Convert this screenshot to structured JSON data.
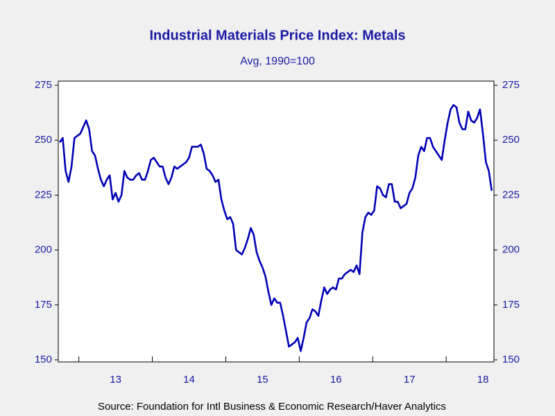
{
  "chart_data": {
    "type": "line",
    "title": "Industrial Materials Price Index: Metals",
    "subtitle": "Avg, 1990=100",
    "source": "Source:  Foundation for Intl Business & Economic Research/Haver Analytics",
    "xlim": [
      2012.72,
      2018.65
    ],
    "xticks": [
      {
        "value": 2013,
        "label": "13"
      },
      {
        "value": 2014,
        "label": "14"
      },
      {
        "value": 2015,
        "label": "15"
      },
      {
        "value": 2016,
        "label": "16"
      },
      {
        "value": 2017,
        "label": "17"
      },
      {
        "value": 2018,
        "label": "18"
      }
    ],
    "ylim": [
      150,
      275
    ],
    "yticks": [
      150,
      175,
      200,
      225,
      250,
      275
    ],
    "y2lim": [
      150,
      275
    ],
    "y2ticks": [
      150,
      175,
      200,
      225,
      250,
      275
    ],
    "grid": false,
    "x": [
      2012.74,
      2012.78,
      2012.82,
      2012.86,
      2012.9,
      2012.94,
      2012.98,
      2013.02,
      2013.06,
      2013.1,
      2013.14,
      2013.18,
      2013.22,
      2013.26,
      2013.3,
      2013.34,
      2013.38,
      2013.42,
      2013.46,
      2013.5,
      2013.54,
      2013.58,
      2013.62,
      2013.66,
      2013.7,
      2013.74,
      2013.78,
      2013.82,
      2013.86,
      2013.9,
      2013.94,
      2013.98,
      2014.02,
      2014.06,
      2014.1,
      2014.14,
      2014.18,
      2014.22,
      2014.26,
      2014.3,
      2014.34,
      2014.38,
      2014.42,
      2014.46,
      2014.5,
      2014.54,
      2014.58,
      2014.62,
      2014.66,
      2014.7,
      2014.74,
      2014.78,
      2014.82,
      2014.86,
      2014.9,
      2014.94,
      2014.98,
      2015.02,
      2015.06,
      2015.1,
      2015.14,
      2015.18,
      2015.22,
      2015.26,
      2015.3,
      2015.34,
      2015.38,
      2015.42,
      2015.46,
      2015.5,
      2015.54,
      2015.58,
      2015.62,
      2015.66,
      2015.7,
      2015.74,
      2015.78,
      2015.82,
      2015.86,
      2015.9,
      2015.94,
      2015.98,
      2016.02,
      2016.06,
      2016.1,
      2016.14,
      2016.18,
      2016.22,
      2016.26,
      2016.3,
      2016.34,
      2016.38,
      2016.42,
      2016.46,
      2016.5,
      2016.54,
      2016.58,
      2016.62,
      2016.66,
      2016.7,
      2016.74,
      2016.78,
      2016.82,
      2016.86,
      2016.9,
      2016.94,
      2016.98,
      2017.02,
      2017.06,
      2017.1,
      2017.14,
      2017.18,
      2017.22,
      2017.26,
      2017.3,
      2017.34,
      2017.38,
      2017.42,
      2017.46,
      2017.5,
      2017.54,
      2017.58,
      2017.62,
      2017.66,
      2017.7,
      2017.74,
      2017.78,
      2017.82,
      2017.86,
      2017.9,
      2017.94,
      2017.98,
      2018.02,
      2018.06,
      2018.1,
      2018.14,
      2018.18,
      2018.22,
      2018.26,
      2018.3,
      2018.34,
      2018.38,
      2018.42,
      2018.46,
      2018.5,
      2018.54,
      2018.58,
      2018.62
    ],
    "series": [
      {
        "name": "Metals",
        "color": "#0000b4",
        "values": [
          249,
          251,
          236,
          231,
          238,
          251,
          252,
          253,
          256,
          259,
          255,
          245,
          243,
          237,
          232,
          229,
          232,
          234,
          223,
          226,
          222,
          225,
          236,
          233,
          232,
          232,
          234,
          235,
          232,
          232,
          236,
          241,
          242,
          240,
          238,
          238,
          233,
          230,
          233,
          238,
          237,
          238,
          239,
          240,
          242,
          247,
          247,
          247,
          248,
          244,
          237,
          236,
          234,
          231,
          232,
          223,
          218,
          214,
          215,
          212,
          200,
          199,
          198,
          201,
          205,
          210,
          207,
          199,
          195,
          192,
          188,
          181,
          175,
          178,
          176,
          176,
          170,
          163,
          156,
          157,
          158,
          160,
          154,
          160,
          167,
          169,
          173,
          172,
          170,
          177,
          183,
          180,
          182,
          183,
          182,
          187,
          187,
          189,
          190,
          191,
          190,
          193,
          189,
          208,
          215,
          217,
          216,
          218,
          229,
          228,
          225,
          224,
          230,
          230,
          222,
          222,
          219,
          220,
          221,
          226,
          228,
          233,
          243,
          247,
          245,
          251,
          251,
          247,
          245,
          243,
          241,
          250,
          258,
          264,
          266,
          265,
          258,
          255,
          255,
          263,
          259,
          258,
          260,
          264,
          253,
          240,
          236,
          227
        ]
      }
    ]
  }
}
